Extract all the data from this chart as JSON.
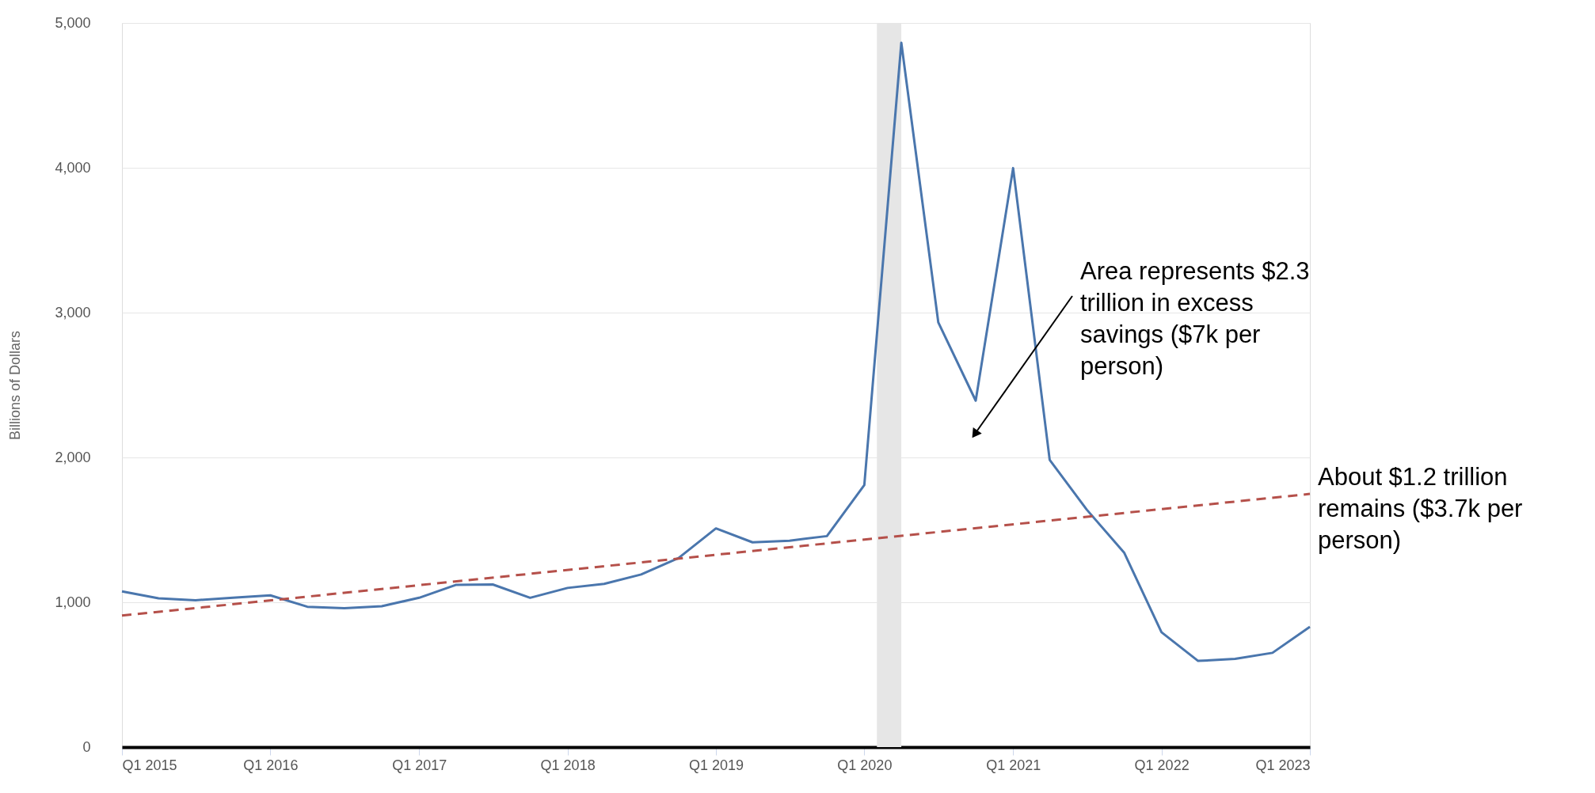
{
  "chart_data": {
    "type": "line",
    "ylabel": "Billions of Dollars",
    "x": [
      "2015-01",
      "2015-04",
      "2015-07",
      "2015-10",
      "2016-01",
      "2016-04",
      "2016-07",
      "2016-10",
      "2017-01",
      "2017-04",
      "2017-07",
      "2017-10",
      "2018-01",
      "2018-04",
      "2018-07",
      "2018-10",
      "2019-01",
      "2019-04",
      "2019-07",
      "2019-10",
      "2020-01",
      "2020-04",
      "2020-07",
      "2020-10",
      "2021-01",
      "2021-04",
      "2021-07",
      "2021-10",
      "2022-01",
      "2022-04",
      "2022-07",
      "2022-10",
      "2023-01"
    ],
    "series": [
      {
        "color": "#4a76ad",
        "values": [
          1075,
          1027,
          1014,
          1031,
          1048,
          969,
          959,
          973,
          1031,
          1120,
          1123,
          1031,
          1099,
          1127,
          1192,
          1305,
          1510,
          1414,
          1425,
          1457,
          1810,
          4863,
          2932,
          2392,
          3998,
          1983,
          1640,
          1343,
          793,
          595,
          609,
          651,
          831
        ]
      },
      {
        "type": "line",
        "color": "#b5504a",
        "line_style": "dashed",
        "x": [
          "2015-01",
          "2023-01"
        ],
        "values": [
          908,
          1748
        ]
      }
    ],
    "xlim": [
      "2015-01",
      "2023-01"
    ],
    "xticks": [
      {
        "value": "2015-01",
        "label": "Q1 2015"
      },
      {
        "value": "2016-01",
        "label": "Q1 2016"
      },
      {
        "value": "2017-01",
        "label": "Q1 2017"
      },
      {
        "value": "2018-01",
        "label": "Q1 2018"
      },
      {
        "value": "2019-01",
        "label": "Q1 2019"
      },
      {
        "value": "2020-01",
        "label": "Q1 2020"
      },
      {
        "value": "2021-01",
        "label": "Q1 2021"
      },
      {
        "value": "2022-01",
        "label": "Q1 2022"
      },
      {
        "value": "2023-01",
        "label": "Q1 2023"
      }
    ],
    "ylim": [
      0,
      5000
    ],
    "yticks": [
      0,
      {
        "value": 1000,
        "label": "1,000"
      },
      {
        "value": 2000,
        "label": "2,000"
      },
      {
        "value": 3000,
        "label": "3,000"
      },
      {
        "value": 4000,
        "label": "4,000"
      },
      {
        "value": 5000,
        "label": "5,000"
      }
    ],
    "bands": [
      {
        "axis": "x",
        "from": "2020-02",
        "to": "2020-04",
        "color": "#e6e6e6"
      }
    ],
    "annotations": [
      "Area represents $2.3 trillion in excess savings ($7k per person)",
      "About $1.2 trillion remains ($3.7k per person)"
    ],
    "grid": "y",
    "marker": "none"
  }
}
